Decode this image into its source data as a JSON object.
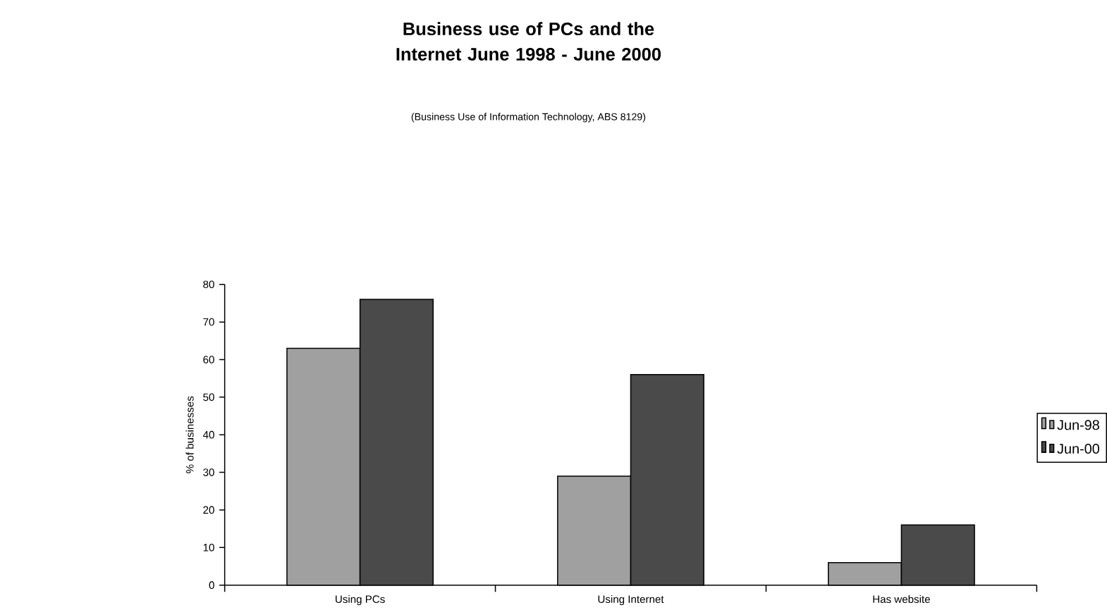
{
  "chart_data": {
    "type": "bar",
    "title": "Business use of PCs and the Internet June 1998 - June 2000",
    "subtitle": "(Business Use of Information Technology, ABS 8129)",
    "ylabel": "% of businesses",
    "categories": [
      "Using PCs",
      "Using Internet",
      "Has website"
    ],
    "series": [
      {
        "name": "Jun-98",
        "color": "#a0a0a0",
        "values": [
          63,
          29,
          6
        ]
      },
      {
        "name": "Jun-00",
        "color": "#4a4a4a",
        "values": [
          76,
          56,
          16
        ]
      }
    ],
    "ylim": [
      0,
      80
    ],
    "yticks": [
      0,
      10,
      20,
      30,
      40,
      50,
      60,
      70,
      80
    ],
    "legend": "right"
  }
}
